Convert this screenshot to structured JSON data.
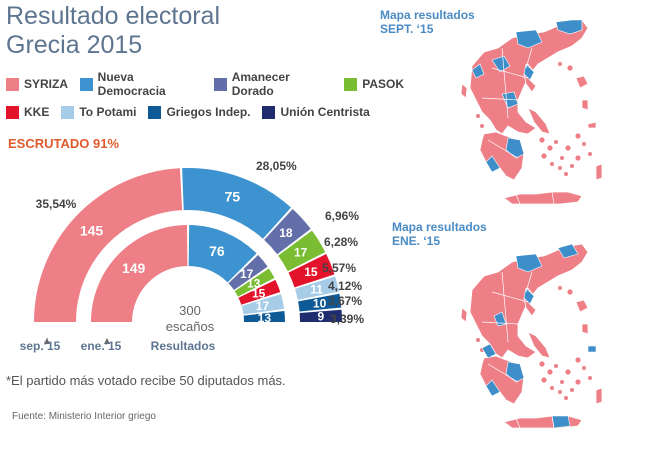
{
  "title": {
    "line1": "Resultado electoral",
    "line2": "Grecia 2015"
  },
  "colors": {
    "title": "#5d7590",
    "escrutado": "#e05a2b",
    "map_label": "#4a8bc4",
    "map_red": "#ee7f87",
    "map_blue": "#3d8ec9",
    "map_border": "#ffffff"
  },
  "legend": {
    "row1": [
      {
        "name": "SYRIZA",
        "color": "#ee7f87"
      },
      {
        "name": "Nueva Democracia",
        "color": "#3d93cf"
      },
      {
        "name": "Amanecer Dorado",
        "color": "#636fa8"
      },
      {
        "name": "PASOK",
        "color": "#7abd33"
      }
    ],
    "row2": [
      {
        "name": "KKE",
        "color": "#e3132b"
      },
      {
        "name": "To Potami",
        "color": "#a6cce8"
      },
      {
        "name": "Griegos Indep.",
        "color": "#0d5a97"
      },
      {
        "name": "Unión Centrista",
        "color": "#1f2d6e"
      }
    ]
  },
  "escrutado": "ESCRUTADO 91%",
  "center_label": {
    "line1": "300",
    "line2": "escaños",
    "line3": "Resultados"
  },
  "ring_labels": {
    "sep": "sep.’15",
    "ene": "ene.’15"
  },
  "note": "*El partido más votado recibe 50 diputados más.",
  "source": "Fuente: Ministerio Interior griego",
  "maps": [
    {
      "label_line1": "Mapa resultados",
      "label_line2": "SEPT. ‘15"
    },
    {
      "label_line1": "Mapa resultados",
      "label_line2": "ENE. ‘15"
    }
  ],
  "chart_data": {
    "type": "semicircle-parliament",
    "total_seats": 300,
    "parties": [
      "SYRIZA",
      "Nueva Democracia",
      "Amanecer Dorado",
      "PASOK",
      "KKE",
      "To Potami",
      "Griegos Indep.",
      "Unión Centrista"
    ],
    "series": [
      {
        "name": "sep.’15",
        "seats": [
          145,
          75,
          18,
          17,
          15,
          11,
          10,
          9
        ],
        "votes_pct": [
          "35,54%",
          "28,05%",
          "6,96%",
          "6,28%",
          "5,57%",
          "4,12%",
          "3,67%",
          "3,39%"
        ]
      },
      {
        "name": "ene.’15",
        "seats": [
          149,
          76,
          17,
          13,
          15,
          17,
          13,
          0
        ]
      }
    ]
  }
}
